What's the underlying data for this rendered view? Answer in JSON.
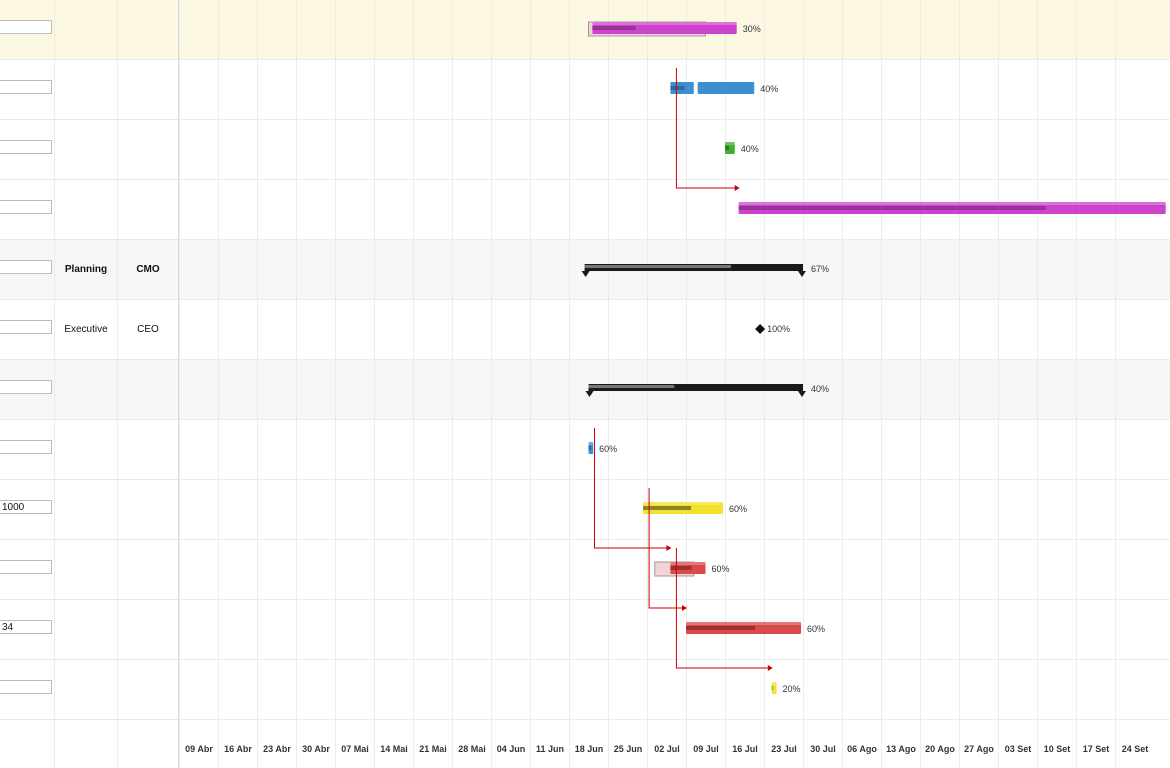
{
  "colors": {
    "highlight": "#fdf8e1",
    "summary_bg": "#f7f7f7",
    "dep_arrow": "#cc0000"
  },
  "timeline": {
    "ticks": [
      "09 Abr",
      "16 Abr",
      "23 Abr",
      "30 Abr",
      "07 Mai",
      "14 Mai",
      "21 Mai",
      "28 Mai",
      "04 Jun",
      "11 Jun",
      "18 Jun",
      "25 Jun",
      "02 Jul",
      "09 Jul",
      "16 Jul",
      "23 Jul",
      "30 Jul",
      "06 Ago",
      "13 Ago",
      "20 Ago",
      "27 Ago",
      "03 Set",
      "10 Set",
      "17 Set",
      "24 Set"
    ]
  },
  "tasks": [
    {
      "id": 1,
      "input": "",
      "dept": "",
      "owner": "",
      "style": "highlight",
      "bar": "task",
      "color": "#cc44cc",
      "dark": "#993399",
      "start": 10.6,
      "end": 14.3,
      "progress": 0.3,
      "baseline": [
        10.5,
        13.5
      ],
      "label": "30%"
    },
    {
      "id": 2,
      "input": "",
      "dept": "",
      "owner": "",
      "style": "normal",
      "bar": "split",
      "color": "#3d8fd0",
      "dark": "#2a6a9c",
      "segments": [
        [
          12.6,
          13.2
        ],
        [
          13.3,
          14.75
        ]
      ],
      "progress": 0.4,
      "label": "40%"
    },
    {
      "id": 3,
      "input": "",
      "dept": "",
      "owner": "",
      "style": "normal",
      "bar": "task",
      "color": "#3fae2e",
      "dark": "#2b7f1e",
      "start": 14.0,
      "end": 14.25,
      "progress": 0.4,
      "label": "40%"
    },
    {
      "id": 4,
      "input": "",
      "dept": "",
      "owner": "",
      "style": "normal",
      "bar": "task",
      "color": "#cc44cc",
      "dark": "#993399",
      "start": 14.35,
      "end": 25.3,
      "progress": 0.72,
      "label": ""
    },
    {
      "id": 5,
      "input": "",
      "dept": "Planning",
      "owner": "CMO",
      "bold": true,
      "style": "summary",
      "bar": "summary",
      "start": 10.4,
      "end": 16.0,
      "progress": 0.67,
      "label": "67%"
    },
    {
      "id": 6,
      "input": "",
      "dept": "Executive",
      "owner": "CEO",
      "style": "normal",
      "bar": "milestone",
      "at": 14.9,
      "label": "100%"
    },
    {
      "id": 7,
      "input": "",
      "dept": "",
      "owner": "",
      "style": "summary",
      "bar": "summary",
      "start": 10.5,
      "end": 16.0,
      "progress": 0.4,
      "label": "40%"
    },
    {
      "id": 8,
      "input": "",
      "dept": "",
      "owner": "",
      "style": "normal",
      "bar": "task",
      "color": "#3d8fd0",
      "dark": "#2a6a9c",
      "start": 10.5,
      "end": 10.62,
      "progress": 0.6,
      "label": "60%"
    },
    {
      "id": 9,
      "input": "1000",
      "dept": "",
      "owner": "",
      "style": "normal",
      "bar": "task",
      "color": "#f2e12a",
      "dark": "#8c8428",
      "start": 11.9,
      "end": 13.95,
      "progress": 0.6,
      "label": "60%"
    },
    {
      "id": 10,
      "input": "",
      "dept": "",
      "owner": "",
      "style": "normal",
      "bar": "task",
      "color": "#d94a4a",
      "dark": "#a03030",
      "start": 12.6,
      "end": 13.5,
      "progress": 0.6,
      "baseline": [
        12.2,
        13.2
      ],
      "label": "60%"
    },
    {
      "id": 11,
      "input": "34",
      "dept": "",
      "owner": "",
      "style": "normal",
      "bar": "task",
      "color": "#d94a4a",
      "dark": "#a03030",
      "start": 13.0,
      "end": 15.95,
      "progress": 0.6,
      "label": "60%"
    },
    {
      "id": 12,
      "input": "",
      "dept": "",
      "owner": "",
      "style": "normal",
      "bar": "task",
      "color": "#f2e12a",
      "dark": "#8c8428",
      "start": 15.2,
      "end": 15.32,
      "progress": 0.2,
      "label": "20%"
    }
  ],
  "dependencies": [
    {
      "from": 2,
      "to": 4
    },
    {
      "from": 8,
      "to": 10
    },
    {
      "from": 9,
      "to": 11
    },
    {
      "from": 10,
      "to": 12
    }
  ]
}
